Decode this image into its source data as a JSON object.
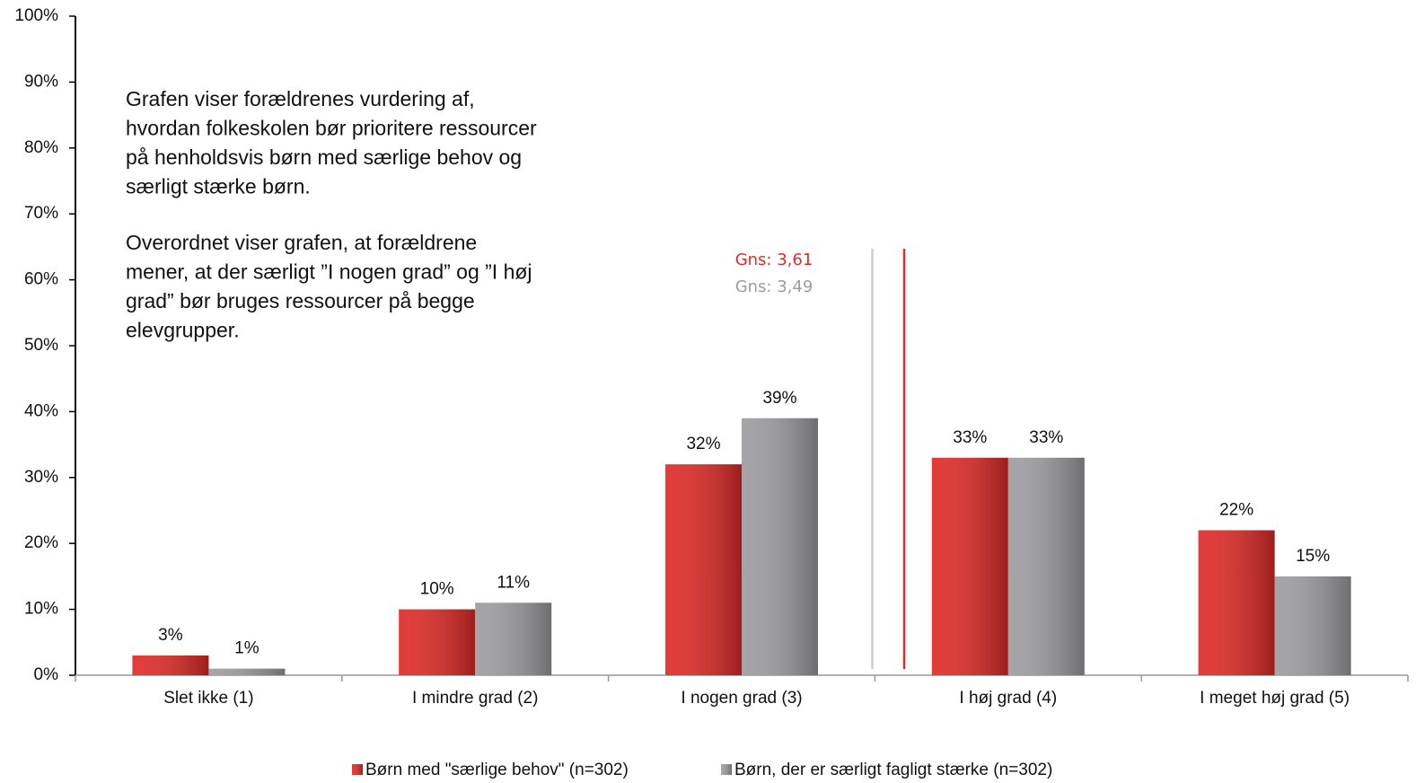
{
  "chart_data": {
    "type": "bar",
    "categories": [
      "Slet ikke (1)",
      "I mindre grad (2)",
      "I nogen grad (3)",
      "I høj grad (4)",
      "I meget høj grad (5)"
    ],
    "series": [
      {
        "name": "Børn med \"særlige behov\" (n=302)",
        "color": "#e02a27",
        "values": [
          3,
          10,
          32,
          33,
          22
        ],
        "value_labels": [
          "3%",
          "10%",
          "32%",
          "33%",
          "22%"
        ]
      },
      {
        "name": "Børn, der er særligt fagligt stærke (n=302)",
        "color": "#9d9da1",
        "values": [
          1,
          11,
          39,
          33,
          15
        ],
        "value_labels": [
          "1%",
          "11%",
          "39%",
          "33%",
          "15%"
        ]
      }
    ],
    "ylim": [
      0,
      100
    ],
    "yticks": [
      {
        "value": 0,
        "label": "0%"
      },
      {
        "value": 10,
        "label": "10%"
      },
      {
        "value": 20,
        "label": "20%"
      },
      {
        "value": 30,
        "label": "30%"
      },
      {
        "value": 40,
        "label": "40%"
      },
      {
        "value": 50,
        "label": "50%"
      },
      {
        "value": 60,
        "label": "60%"
      },
      {
        "value": 70,
        "label": "70%"
      },
      {
        "value": 80,
        "label": "80%"
      },
      {
        "value": 90,
        "label": "90%"
      },
      {
        "value": 100,
        "label": "100%"
      }
    ],
    "means": [
      {
        "value": 3.61,
        "label": "Gns: 3,61",
        "color": "#e02a27"
      },
      {
        "value": 3.49,
        "label": "Gns: 3,49",
        "color": "#9d9da1"
      }
    ],
    "annotation": [
      [
        "Grafen viser forældrenes vurdering af,",
        "hvordan folkeskolen bør prioritere ressourcer",
        "på henholdsvis børn med særlige behov og",
        "særligt stærke børn."
      ],
      [
        "Overordnet viser grafen, at forældrene",
        "mener, at der særligt ”I nogen grad” og ”I høj",
        "grad” bør bruges ressourcer på begge",
        "elevgrupper."
      ]
    ],
    "legend": "bottom"
  }
}
